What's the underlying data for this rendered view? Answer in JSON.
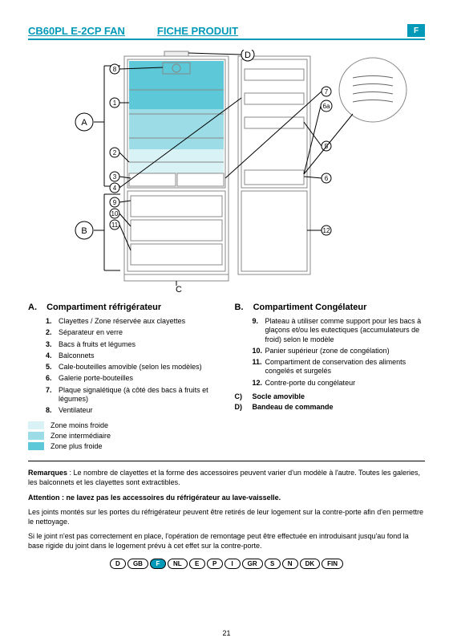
{
  "colors": {
    "accent": "#0099b8",
    "zone_cold": "#d9f2f6",
    "zone_mid": "#9cdce6",
    "zone_warm": "#5cc8d8",
    "diagram_line": "#6a6a6a",
    "zone_fill_top": "#5cc8d8",
    "zone_fill_mid": "#9cdce6",
    "zone_fill_low": "#d9f2f6"
  },
  "header": {
    "title_left": "CB60PL E-2CP FAN",
    "title_right": "FICHE PRODUIT",
    "lang_badge": "F"
  },
  "diagram": {
    "labels": {
      "A": "A",
      "B": "B",
      "C": "C",
      "D": "D"
    },
    "callouts_left": [
      "8",
      "1",
      "2",
      "3",
      "4",
      "9",
      "10",
      "11"
    ],
    "callouts_right": [
      "6a",
      "7",
      "5",
      "6",
      "12"
    ]
  },
  "sectionA": {
    "letter": "A.",
    "title": "Compartiment réfrigérateur",
    "items": [
      {
        "n": "1.",
        "t": "Clayettes / Zone réservée aux clayettes"
      },
      {
        "n": "2.",
        "t": "Séparateur en verre"
      },
      {
        "n": "3.",
        "t": "Bacs à fruits et légumes"
      },
      {
        "n": "4.",
        "t": "Balconnets"
      },
      {
        "n": "5.",
        "t": "Cale-bouteilles amovible (selon les modèles)"
      },
      {
        "n": "6.",
        "t": "Galerie porte-bouteilles"
      },
      {
        "n": "7.",
        "t": "Plaque signalétique (à côté des bacs à fruits et légumes)"
      },
      {
        "n": "8.",
        "t": "Ventilateur"
      }
    ]
  },
  "sectionB": {
    "letter": "B.",
    "title": "Compartiment Congélateur",
    "items": [
      {
        "n": "9.",
        "t": "Plateau à utiliser comme support pour les bacs à glaçons et/ou les eutectiques (accumulateurs de froid) selon le modèle"
      },
      {
        "n": "10.",
        "t": "Panier supérieur (zone de congélation)"
      },
      {
        "n": "11.",
        "t": "Compartiment de conservation des aliments congelés et surgelés"
      },
      {
        "n": "12.",
        "t": "Contre-porte du congélateur"
      }
    ],
    "side": [
      {
        "l": "C)",
        "t": "Socle amovible"
      },
      {
        "l": "D)",
        "t": "Bandeau de commande"
      }
    ]
  },
  "zones": [
    {
      "swatch": "zone_cold",
      "label": "Zone moins froide"
    },
    {
      "swatch": "zone_mid",
      "label": "Zone intermédiaire"
    },
    {
      "swatch": "zone_warm",
      "label": "Zone plus froide"
    }
  ],
  "notes": {
    "p1_label": "Remarques",
    "p1": ": Le nombre de clayettes et la forme des accessoires peuvent varier d'un modèle à l'autre. Toutes les galeries, les balconnets et les clayettes sont extractibles.",
    "p2": "Attention : ne lavez pas les accessoires du réfrigérateur au lave-vaisselle.",
    "p3": "Les joints montés sur les portes du réfrigérateur peuvent être retirés de leur logement sur la contre-porte afin d'en permettre le nettoyage.",
    "p4": "Si le joint n'est pas correctement en place, l'opération de remontage peut être effectuée en introduisant jusqu'au fond la base rigide du joint dans le logement prévu à cet effet sur la contre-porte."
  },
  "footer_langs": [
    "D",
    "GB",
    "F",
    "NL",
    "E",
    "P",
    "I",
    "GR",
    "S",
    "N",
    "DK",
    "FIN"
  ],
  "footer_active": "F",
  "page_number": "21"
}
